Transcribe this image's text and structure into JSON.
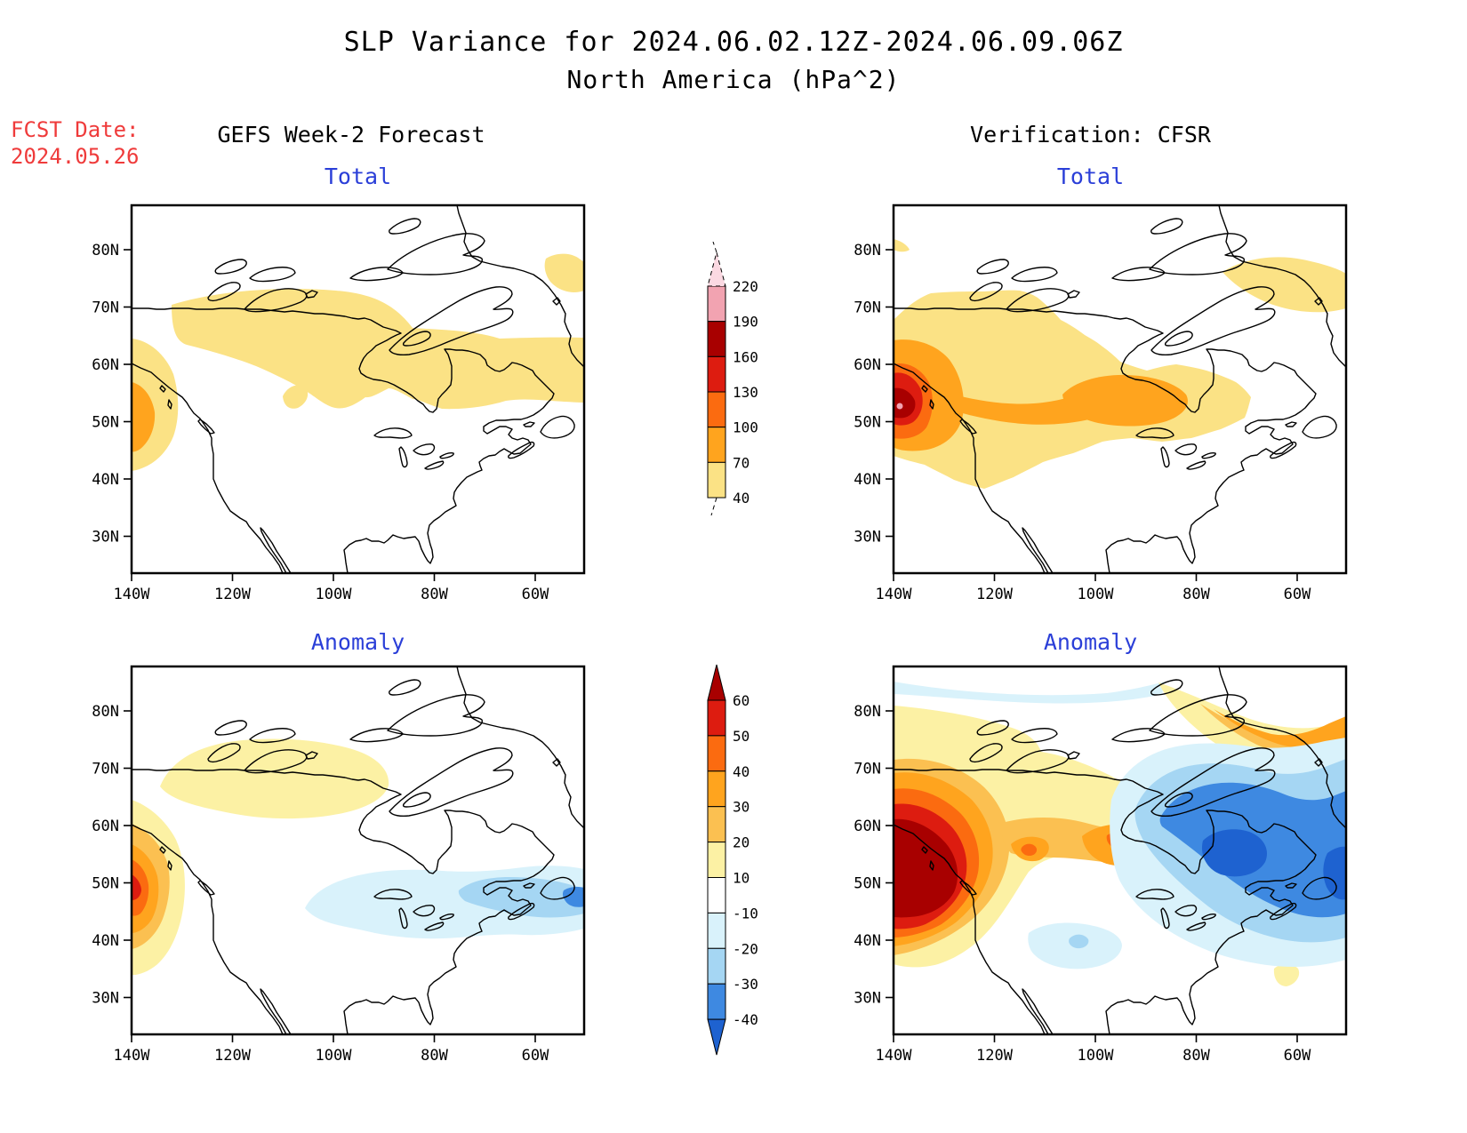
{
  "title": {
    "line1": "SLP Variance for 2024.06.02.12Z-2024.06.09.06Z",
    "line2": "North America (hPa^2)"
  },
  "forecast": {
    "label": "FCST Date:",
    "date": "2024.05.26"
  },
  "columns": {
    "left_header": "GEFS Week-2 Forecast",
    "right_header": "Verification: CFSR"
  },
  "panels": [
    {
      "id": "gefs_total",
      "subtitle": "Total"
    },
    {
      "id": "cfsr_total",
      "subtitle": "Total"
    },
    {
      "id": "gefs_anomaly",
      "subtitle": "Anomaly"
    },
    {
      "id": "cfsr_anomaly",
      "subtitle": "Anomaly"
    }
  ],
  "accents": {
    "subtitle_color": "#2B3FD8",
    "fcst_color": "#EF3B3B"
  },
  "axes": {
    "lat_ticks": [
      "80N",
      "70N",
      "60N",
      "50N",
      "40N",
      "30N"
    ],
    "lon_ticks": [
      "140W",
      "120W",
      "100W",
      "80W",
      "60W"
    ]
  },
  "colorbars": {
    "total": {
      "orientation": "vertical",
      "tick_labels": [
        "220",
        "190",
        "160",
        "130",
        "100",
        "70",
        "40"
      ],
      "segments": [
        {
          "range": "190-220",
          "color": "#F2A3B1"
        },
        {
          "range": "160-190",
          "color": "#A80000"
        },
        {
          "range": "130-160",
          "color": "#DD1C10"
        },
        {
          "range": "100-130",
          "color": "#FB6B10"
        },
        {
          "range": "70-100",
          "color": "#FFA41E"
        },
        {
          "range": "40-70",
          "color": "#FBE285"
        }
      ],
      "above_arrow_color": "#FBD9E2"
    },
    "anomaly": {
      "orientation": "vertical",
      "tick_labels": [
        "60",
        "50",
        "40",
        "30",
        "20",
        "10",
        "-10",
        "-20",
        "-30",
        "-40"
      ],
      "segments": [
        {
          "range": "50-60",
          "color": "#DD1C10"
        },
        {
          "range": "40-50",
          "color": "#FB6B10"
        },
        {
          "range": "30-40",
          "color": "#FFA41E"
        },
        {
          "range": "20-30",
          "color": "#FBC051"
        },
        {
          "range": "10-20",
          "color": "#FCF1A4"
        },
        {
          "range": "-10-10",
          "color": "#FFFFFF"
        },
        {
          "range": "-20--10",
          "color": "#D9F2FB"
        },
        {
          "range": "-30--20",
          "color": "#A5D6F3"
        },
        {
          "range": "-40--30",
          "color": "#3E89E1"
        }
      ],
      "above_arrow_color": "#A80000",
      "below_arrow_color": "#1E62D0"
    }
  },
  "chart_data": [
    {
      "type": "heatmap",
      "panel": "GEFS Week-2 Forecast - Total",
      "units": "hPa^2",
      "contour_levels": [
        40,
        70,
        100,
        130,
        160,
        190,
        220
      ],
      "lat_range": [
        "~24N",
        "~87N"
      ],
      "lon_range": [
        "140W",
        "~51W"
      ],
      "features": [
        {
          "region": "Gulf of Alaska / British Columbia coast (~46-62N, near 140W)",
          "value_range": "70-100"
        },
        {
          "region": "broad band across northern Canada (~55-70N, 60-135W)",
          "value_range": "40-70"
        },
        {
          "region": "small patch near 52N 105W",
          "value_range": "40-70"
        },
        {
          "region": "northeast corner near Greenland (~75N, 55W)",
          "value_range": "40-70"
        }
      ]
    },
    {
      "type": "heatmap",
      "panel": "Verification: CFSR - Total",
      "units": "hPa^2",
      "contour_levels": [
        40,
        70,
        100,
        130,
        160,
        190,
        220
      ],
      "lat_range": [
        "~24N",
        "~87N"
      ],
      "lon_range": [
        "140W",
        "~51W"
      ],
      "features": [
        {
          "region": "strong maximum centered ~53N 138W off British Columbia",
          "peak_value": "190-220"
        },
        {
          "region": "concentric rings 40-190 around the Pacific maximum (42-68N)",
          "value_range": "40-190"
        },
        {
          "region": "secondary maximum central Canada (~55N, 88-105W)",
          "value_range": "70-100"
        },
        {
          "region": "band ~48-70N across Canada",
          "value_range": "40-70"
        },
        {
          "region": "northeast corner near Greenland",
          "value_range": "40-70"
        },
        {
          "region": "tiny sliver at 80N near 140W",
          "value_range": "40-70"
        }
      ]
    },
    {
      "type": "heatmap",
      "panel": "GEFS Week-2 Forecast - Anomaly",
      "units": "hPa^2",
      "contour_levels": [
        -40,
        -30,
        -20,
        -10,
        10,
        20,
        30,
        40,
        50,
        60
      ],
      "lat_range": [
        "~24N",
        "~87N"
      ],
      "lon_range": [
        "140W",
        "~51W"
      ],
      "features": [
        {
          "region": "positive maximum at BC coast (~51N, 139W)",
          "peak_value": "50-60"
        },
        {
          "region": "positive patch over Canadian Arctic archipelago (~66-75N, 90-135W)",
          "value_range": "10-20"
        },
        {
          "region": "negative band eastern Canada (~45-55N, 55-105W)",
          "value_range": "-20 to -10"
        },
        {
          "region": "negative core near Newfoundland (~50N, 52-65W)",
          "value_range": "-40 to -20"
        }
      ]
    },
    {
      "type": "heatmap",
      "panel": "Verification: CFSR - Anomaly",
      "units": "hPa^2",
      "contour_levels": [
        -40,
        -30,
        -20,
        -10,
        10,
        20,
        30,
        40,
        50,
        60
      ],
      "lat_range": [
        "~24N",
        "~87N"
      ],
      "lon_range": [
        "140W",
        "~51W"
      ],
      "features": [
        {
          "region": "very strong positive maximum off BC coast (~48-58N, 130-140W)",
          "peak_value": "> 60"
        },
        {
          "region": "positive band eastward to ~88W with embedded maximum ~55N 97W",
          "value_range": "20-50"
        },
        {
          "region": "positive area near northwest Greenland (~76-80N, 52-75W)",
          "value_range": "20-40"
        },
        {
          "region": "strong negative region over Quebec / Labrador / Baffin (~48-70N, 52-82W)",
          "peak_value": "< -40"
        },
        {
          "region": "weak negative band along the top edge (~85N) and spot near 42N 95W",
          "value_range": "-30 to -10"
        },
        {
          "region": "small positive spot ~34N 62W",
          "value_range": "10-20"
        }
      ]
    }
  ]
}
